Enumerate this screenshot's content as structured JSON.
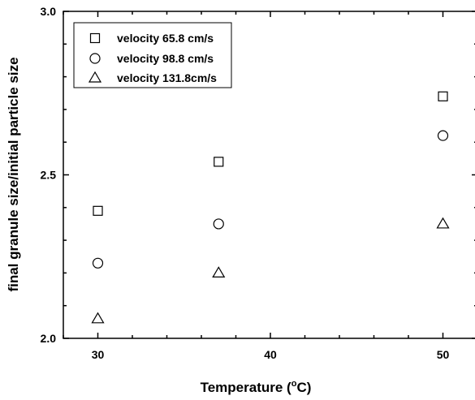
{
  "chart_data": {
    "type": "scatter",
    "title": "",
    "xlabel": "Temperature (",
    "xlabel_sup": "o",
    "xlabel_unit": "C)",
    "ylabel": "final granule size/initial particle size",
    "xlim": [
      28,
      52
    ],
    "ylim": [
      2.0,
      3.0
    ],
    "x_ticks": [
      {
        "value": 30,
        "label": "30"
      },
      {
        "value": 40,
        "label": "40"
      },
      {
        "value": 50,
        "label": "50"
      }
    ],
    "y_ticks": [
      {
        "value": 2.0,
        "label": "2.0"
      },
      {
        "value": 2.5,
        "label": "2.5"
      },
      {
        "value": 3.0,
        "label": "3.0"
      }
    ],
    "grid": false,
    "legend_position": "top-left",
    "series": [
      {
        "name": "velocity 65.8 cm/s",
        "marker": "square",
        "x": [
          30,
          37,
          50
        ],
        "y": [
          2.39,
          2.54,
          2.74
        ]
      },
      {
        "name": "velocity 98.8 cm/s",
        "marker": "circle",
        "x": [
          30,
          37,
          50
        ],
        "y": [
          2.23,
          2.35,
          2.62
        ]
      },
      {
        "name": "velocity 131.8cm/s",
        "marker": "triangle",
        "x": [
          30,
          37,
          50
        ],
        "y": [
          2.06,
          2.2,
          2.35
        ]
      }
    ]
  }
}
